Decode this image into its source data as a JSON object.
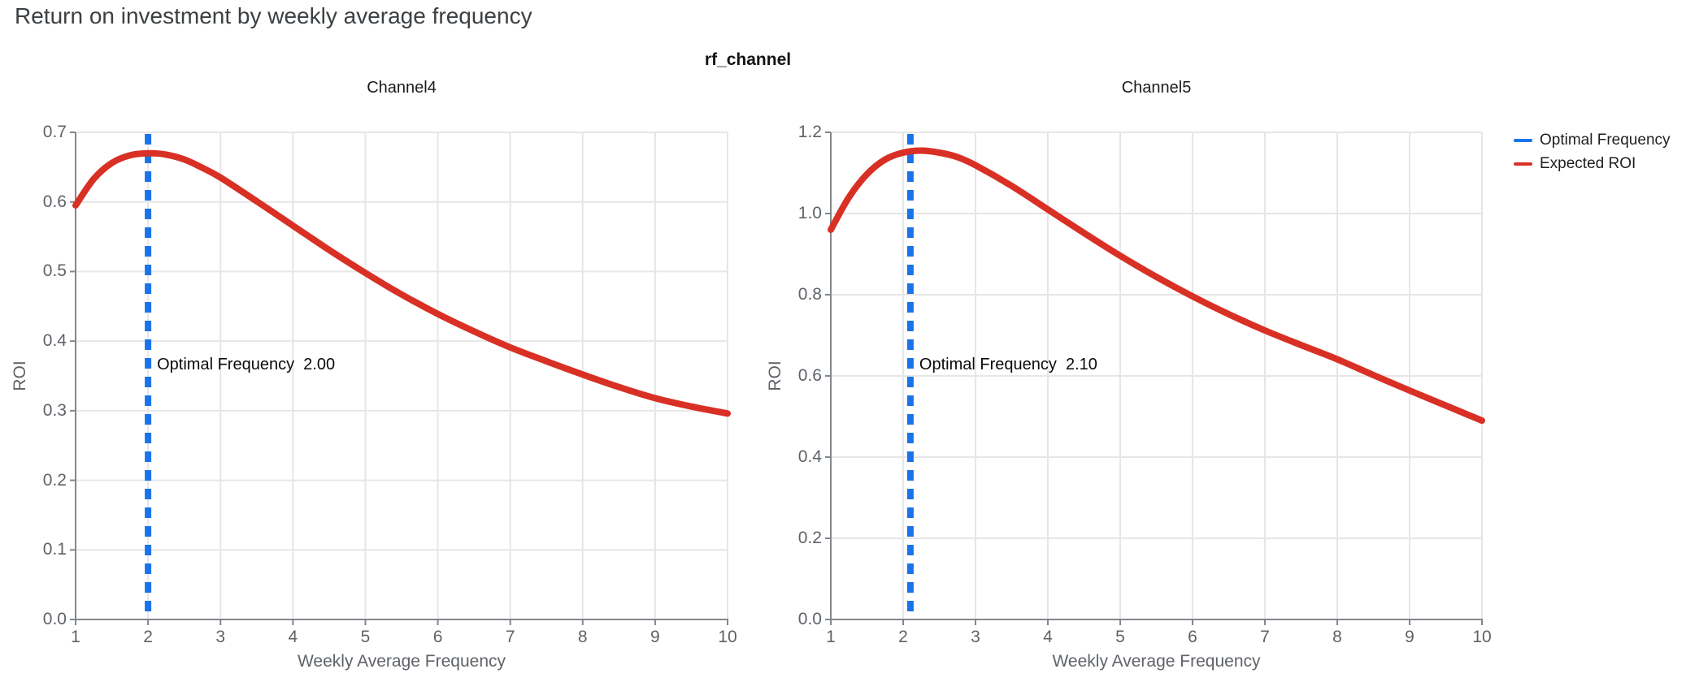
{
  "header": {
    "title": "Return on investment by weekly average frequency"
  },
  "facet": {
    "title": "rf_channel"
  },
  "legend": {
    "items": [
      {
        "label": "Optimal Frequency",
        "color": "#1A73E8"
      },
      {
        "label": "Expected ROI",
        "color": "#D93025"
      }
    ]
  },
  "colors": {
    "title": "#3C4043",
    "axis_label": "#5F6368",
    "axis_line": "#82878C",
    "grid": "#E6E6E6",
    "optimal_frequency": "#1A73E8",
    "expected_roi": "#D93025",
    "annotation": "#0A0A0A"
  },
  "chart_data": [
    {
      "type": "line",
      "title": "Channel4",
      "xlabel": "Weekly Average Frequency",
      "ylabel": "ROI",
      "xlim": [
        1,
        10
      ],
      "ylim": [
        0,
        0.7
      ],
      "xticks": [
        1,
        2,
        3,
        4,
        5,
        6,
        7,
        8,
        9,
        10
      ],
      "yticks": [
        0,
        0.1,
        0.2,
        0.3,
        0.4,
        0.5,
        0.6,
        0.7
      ],
      "ytick_labels": [
        "0.0",
        "0.1",
        "0.2",
        "0.3",
        "0.4",
        "0.5",
        "0.6",
        "0.7"
      ],
      "grid": true,
      "legend_position": "top-right",
      "optimal_frequency": 2.0,
      "annotation": "Optimal Frequency  2.00",
      "series": [
        {
          "name": "Expected ROI",
          "x": [
            1,
            1.25,
            1.5,
            1.75,
            2,
            2.25,
            2.5,
            2.75,
            3,
            3.5,
            4,
            4.5,
            5,
            5.5,
            6,
            6.5,
            7,
            7.5,
            8,
            8.5,
            9,
            9.5,
            10
          ],
          "y": [
            0.595,
            0.633,
            0.656,
            0.667,
            0.67,
            0.668,
            0.661,
            0.649,
            0.635,
            0.601,
            0.566,
            0.531,
            0.498,
            0.467,
            0.439,
            0.414,
            0.391,
            0.371,
            0.352,
            0.334,
            0.318,
            0.306,
            0.296
          ]
        }
      ]
    },
    {
      "type": "line",
      "title": "Channel5",
      "xlabel": "Weekly Average Frequency",
      "ylabel": "ROI",
      "xlim": [
        1,
        10
      ],
      "ylim": [
        0,
        1.2
      ],
      "xticks": [
        1,
        2,
        3,
        4,
        5,
        6,
        7,
        8,
        9,
        10
      ],
      "yticks": [
        0,
        0.2,
        0.4,
        0.6,
        0.8,
        1.0,
        1.2
      ],
      "ytick_labels": [
        "0.0",
        "0.2",
        "0.4",
        "0.6",
        "0.8",
        "1.0",
        "1.2"
      ],
      "grid": true,
      "legend_position": "top-right",
      "optimal_frequency": 2.1,
      "annotation": "Optimal Frequency  2.10",
      "series": [
        {
          "name": "Expected ROI",
          "x": [
            1,
            1.25,
            1.5,
            1.75,
            2,
            2.25,
            2.5,
            2.75,
            3,
            3.5,
            4,
            4.5,
            5,
            5.5,
            6,
            6.5,
            7,
            7.5,
            8,
            8.5,
            9,
            9.5,
            10
          ],
          "y": [
            0.96,
            1.04,
            1.097,
            1.133,
            1.15,
            1.155,
            1.15,
            1.139,
            1.119,
            1.068,
            1.01,
            0.952,
            0.896,
            0.844,
            0.796,
            0.752,
            0.712,
            0.676,
            0.641,
            0.602,
            0.564,
            0.527,
            0.49
          ]
        }
      ]
    }
  ]
}
